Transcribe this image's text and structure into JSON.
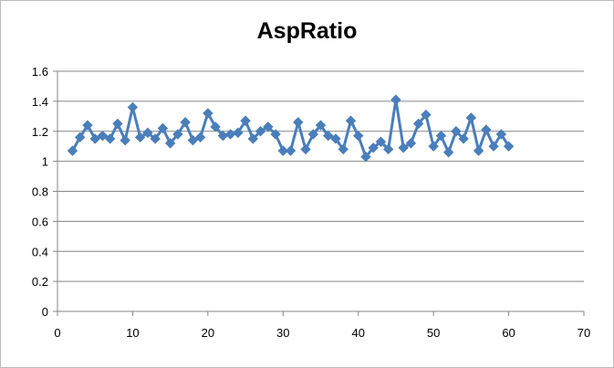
{
  "chart_data": {
    "type": "line",
    "title": "AspRatio",
    "xlabel": "",
    "ylabel": "",
    "xlim": [
      0,
      70
    ],
    "ylim": [
      0,
      1.6
    ],
    "x_ticks": [
      0,
      10,
      20,
      30,
      40,
      50,
      60,
      70
    ],
    "y_ticks": [
      0,
      0.2,
      0.4,
      0.6,
      0.8,
      1,
      1.2,
      1.4,
      1.6
    ],
    "grid": "horizontal",
    "legend": "none",
    "series": [
      {
        "marker": "diamond",
        "color": "#4a7ebb",
        "x": [
          2,
          3,
          4,
          5,
          6,
          7,
          8,
          9,
          10,
          11,
          12,
          13,
          14,
          15,
          16,
          17,
          18,
          19,
          20,
          21,
          22,
          23,
          24,
          25,
          26,
          27,
          28,
          29,
          30,
          31,
          32,
          33,
          34,
          35,
          36,
          37,
          38,
          39,
          40,
          41,
          42,
          43,
          44,
          45,
          46,
          47,
          48,
          49,
          50,
          51,
          52,
          53,
          54,
          55,
          56,
          57,
          58,
          59,
          60
        ],
        "y": [
          1.07,
          1.16,
          1.24,
          1.15,
          1.17,
          1.15,
          1.25,
          1.14,
          1.36,
          1.16,
          1.19,
          1.15,
          1.22,
          1.12,
          1.18,
          1.26,
          1.14,
          1.16,
          1.32,
          1.23,
          1.17,
          1.18,
          1.19,
          1.27,
          1.15,
          1.2,
          1.23,
          1.18,
          1.07,
          1.07,
          1.26,
          1.08,
          1.18,
          1.24,
          1.17,
          1.15,
          1.08,
          1.27,
          1.17,
          1.03,
          1.09,
          1.13,
          1.08,
          1.41,
          1.09,
          1.12,
          1.25,
          1.31,
          1.1,
          1.17,
          1.06,
          1.2,
          1.15,
          1.29,
          1.07,
          1.21,
          1.1,
          1.18,
          1.1
        ]
      }
    ]
  }
}
